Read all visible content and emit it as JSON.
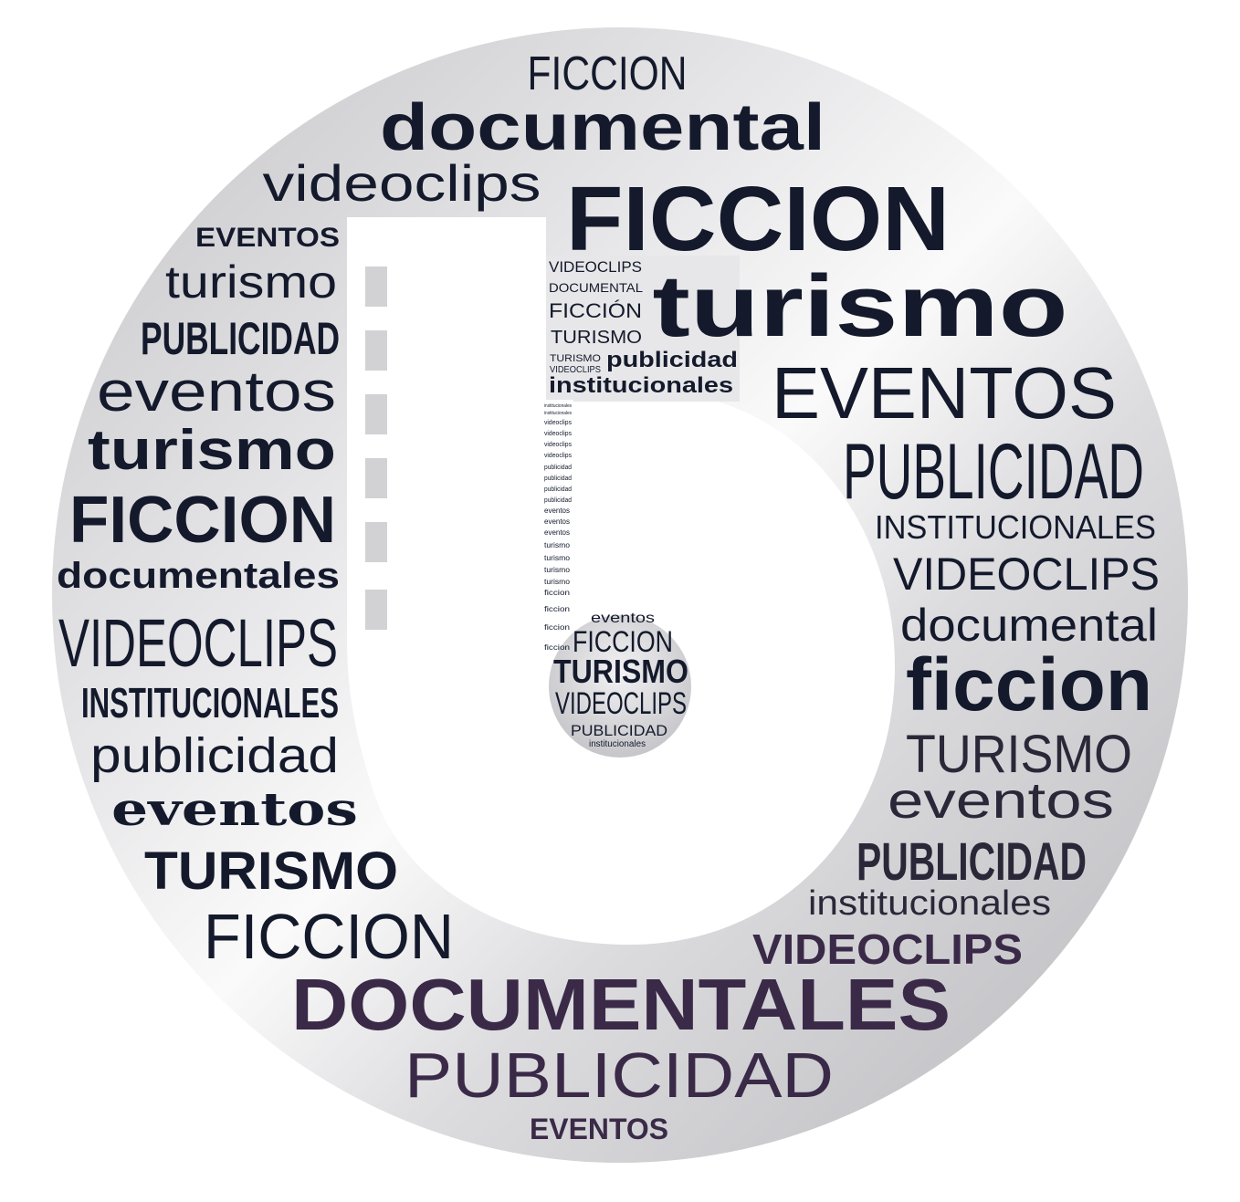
{
  "colors": {
    "navy": "#141a2c",
    "plum": "#3a2a48",
    "ring_light": "#f4f4f5",
    "ring_mid": "#d5d5d8",
    "ring_dark": "#b9b9bd",
    "white": "#ffffff",
    "film_hole": "#d2d2d5"
  },
  "words": {
    "w01": "FICCION",
    "w02": "documental",
    "w03": "videoclips",
    "w04": "FICCION",
    "w05": "EVENTOS",
    "w06": "turismo",
    "w07": "PUBLICIDAD",
    "w08": "eventos",
    "w09": "turismo",
    "w10": "FICCION",
    "w11": "documentales",
    "w12": "VIDEOCLIPS",
    "w13": "INSTITUCIONALES",
    "w14": "publicidad",
    "w15": "eventos",
    "w16": "TURISMO",
    "w17": "FICCION",
    "w18": "DOCUMENTALES",
    "w19": "PUBLICIDAD",
    "w20": "EVENTOS",
    "w21": "turismo",
    "w22": "EVENTOS",
    "w23": "PUBLICIDAD",
    "w24": "INSTITUCIONALES",
    "w25": "VIDEOCLIPS",
    "w26": "documental",
    "w27": "ficcion",
    "w28": "TURISMO",
    "w29": "eventos",
    "w30": "PUBLICIDAD",
    "w31": "institucionales",
    "w32": "VIDEOCLIPS",
    "s01": "VIDEOCLIPS",
    "s02": "DOCUMENTAL",
    "s03": "FICCIÓN",
    "s04": "TURISMO",
    "s05": "TURISMO",
    "s06": "VIDEOCLIPS",
    "s07": "publicidad",
    "s08": "institucionales",
    "c01": "eventos",
    "c02": "FICCION",
    "c03": "TURISMO",
    "c04": "VIDEOCLIPS",
    "c05": "PUBLICIDAD",
    "c06": "institucionales",
    "v01": "institucionales",
    "v02": "institucionales",
    "v03": "videoclips",
    "v04": "videoclips",
    "v05": "videoclips",
    "v06": "videoclips",
    "v07": "publicidad",
    "v08": "publicidad",
    "v09": "publicidad",
    "v10": "publicidad",
    "v11": "eventos",
    "v12": "eventos",
    "v13": "eventos",
    "v14": "turismo",
    "v15": "turismo",
    "v16": "turismo",
    "v17": "turismo",
    "v18": "ficcion",
    "v19": "ficcion",
    "v20": "ficcion",
    "v21": "ficcion"
  }
}
